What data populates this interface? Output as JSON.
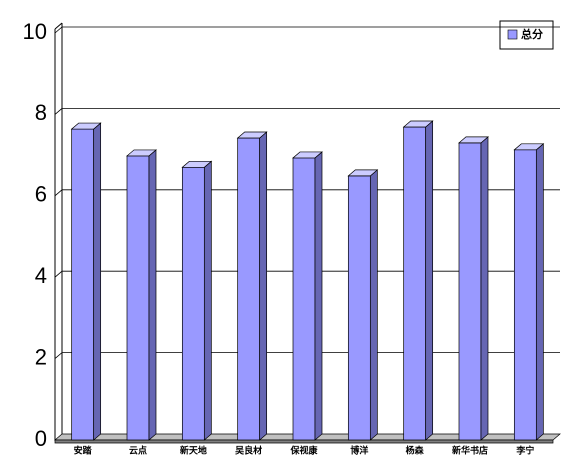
{
  "chart_data": {
    "type": "bar3d",
    "categories": [
      "安踏",
      "云点",
      "新天地",
      "吴良材",
      "保视康",
      "博洋",
      "杨森",
      "新华书店",
      "李宁"
    ],
    "series": [
      {
        "name": "总分",
        "color": "#9999ff",
        "values": [
          7.64,
          6.98,
          6.7,
          7.42,
          6.93,
          6.49,
          7.69,
          7.3,
          7.13
        ]
      }
    ],
    "ylim": [
      0,
      10
    ],
    "yticks": [
      0,
      2,
      4,
      6,
      8,
      10
    ],
    "grid": true,
    "legend": "upper right"
  }
}
